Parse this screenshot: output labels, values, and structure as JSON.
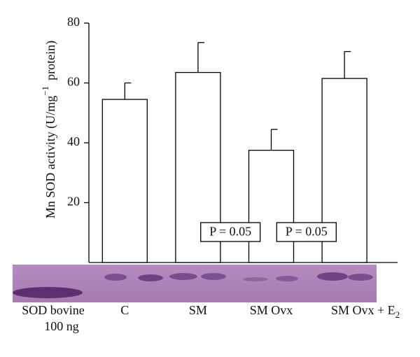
{
  "chart_data": {
    "type": "bar",
    "ylabel": "Mn SOD activity (U/mg",
    "ylabel_sup": "−1",
    "ylabel_end": "protein)",
    "categories": [
      "C",
      "SM",
      "SM Ovx",
      "SM Ovx + E"
    ],
    "category_subscript": "2",
    "values": [
      54.5,
      63.5,
      37.5,
      61.5
    ],
    "errors": [
      5.5,
      10,
      7,
      9
    ],
    "color": "#ffffff",
    "ylim": [
      0,
      80
    ],
    "yticks": [
      20,
      40,
      60,
      80
    ],
    "annotations": [
      "P = 0.05",
      "P = 0.05"
    ],
    "marker_label": [
      "SOD bovine",
      "100 ng"
    ]
  }
}
